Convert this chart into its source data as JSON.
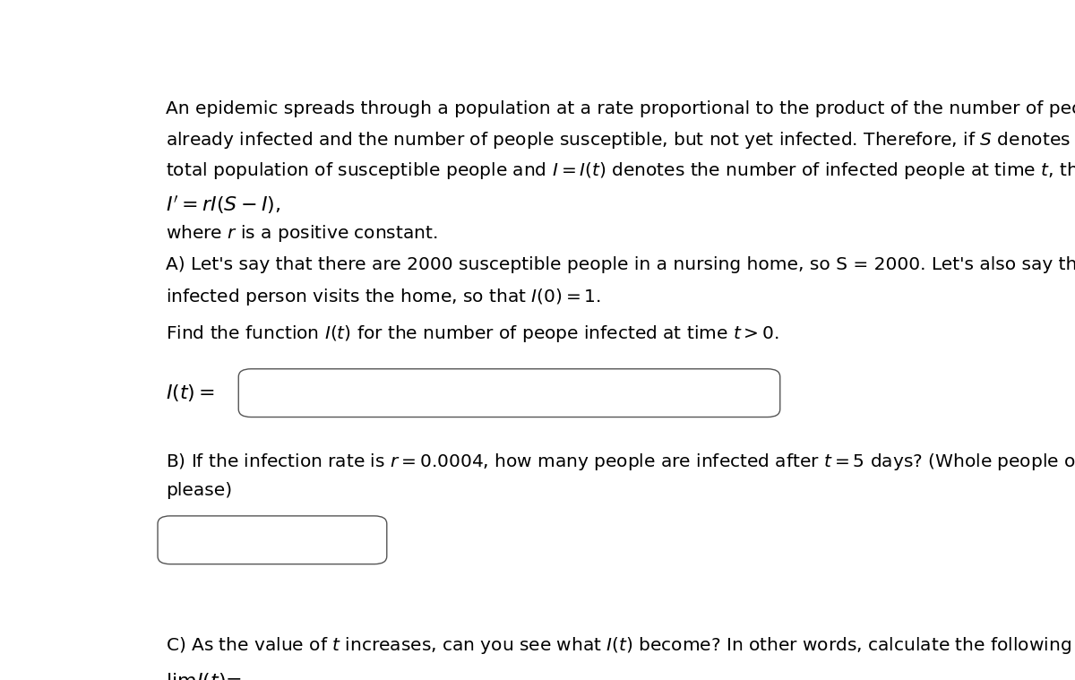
{
  "bg_color": "#ffffff",
  "text_color": "#000000",
  "box_color": "#ffffff",
  "box_edge_color": "#555555",
  "intro_line1": "An epidemic spreads through a population at a rate proportional to the product of the number of people",
  "intro_line2": "already infected and the number of people susceptible, but not yet infected. Therefore, if $S$ denotes the",
  "intro_line3": "total population of susceptible people and $I = I(t)$ denotes the number of infected people at time $t$, then",
  "equation_main": "$I'= rI(S - I),$",
  "where_text": "where $r$ is a positive constant.",
  "partA_line1": "A) Let's say that there are 2000 susceptible people in a nursing home, so S = 2000. Let's also say that one",
  "partA_line2": "infected person visits the home, so that $I(0) = 1.$",
  "find_text": "Find the function $I(t)$ for the number of peope infected at time $t > 0.$",
  "It_label": "$I(t) =$",
  "partB_line1": "B) If the infection rate is $r = 0.0004$, how many people are infected after $t = 5$ days? (Whole people only,",
  "partB_line2": "please)",
  "partC_text": "C) As the value of $t$ increases, can you see what $I(t)$ become? In other words, calculate the following limit",
  "lim_label": "$\\lim_{t\\to\\infty} I(t) =$",
  "font_size": 14.5,
  "font_size_eq": 16,
  "lh": 0.058
}
